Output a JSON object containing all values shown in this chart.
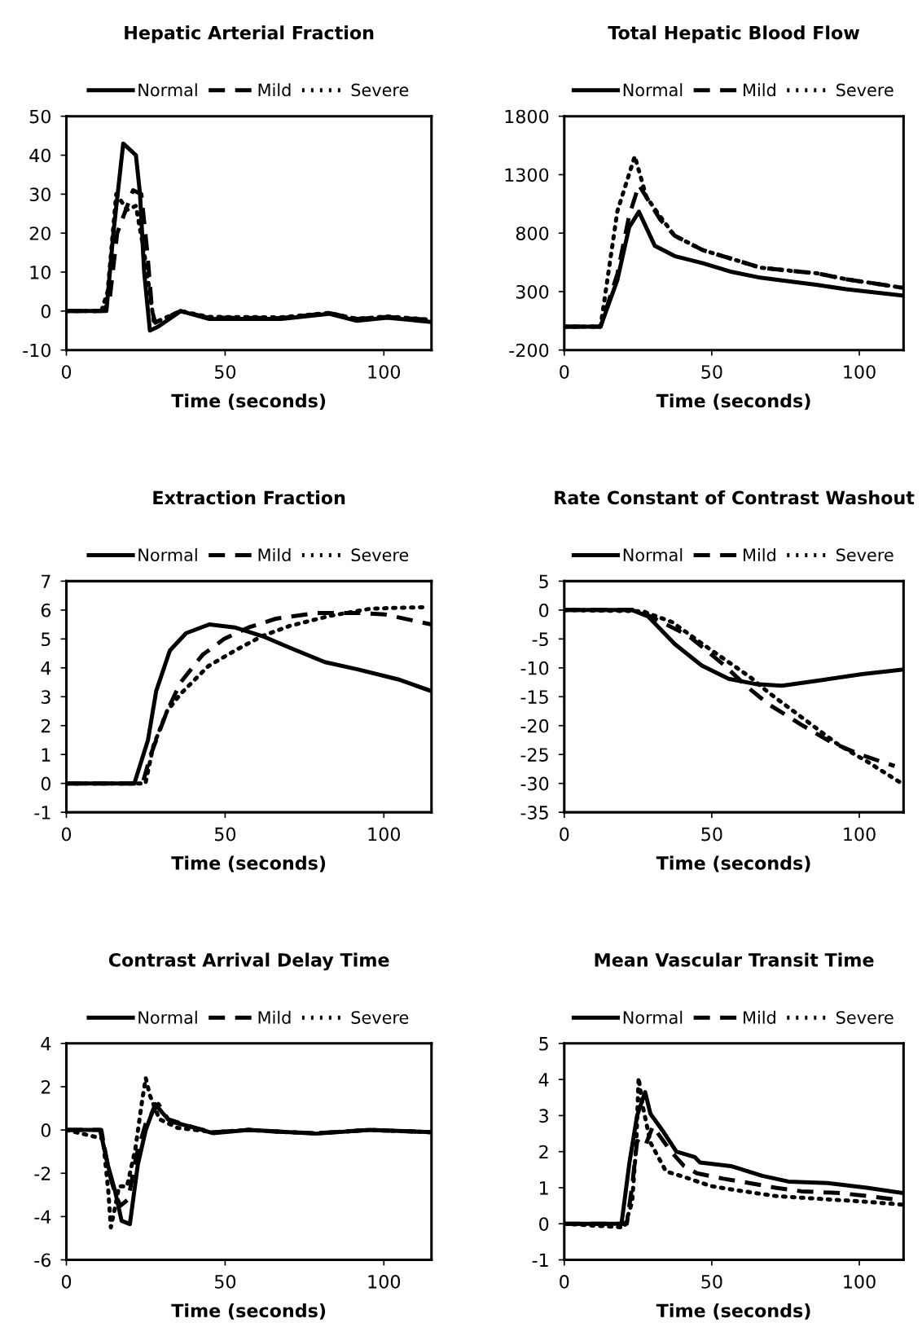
{
  "chart_data": [
    {
      "type": "line",
      "title": "Hepatic Arterial Fraction",
      "xlabel": "Time (seconds)",
      "xlim": [
        0,
        115
      ],
      "xticks": [
        0,
        50,
        100
      ],
      "ylim": [
        -10,
        50
      ],
      "yticks": [
        -10,
        0,
        10,
        20,
        30,
        40,
        50
      ],
      "legend": "top",
      "grid": false,
      "series": [
        {
          "name": "Normal",
          "color": "#000000",
          "line_style": "solid",
          "x": [
            0,
            10,
            12.6,
            14.8,
            17.9,
            21.9,
            23.2,
            24.5,
            26.3,
            28.9,
            36,
            44.8,
            67.7,
            82.7,
            91.5,
            101,
            115
          ],
          "values": [
            0,
            0,
            0,
            20,
            43,
            40,
            30,
            10,
            -5,
            -4,
            0,
            -2,
            -2,
            -0.7,
            -2.5,
            -1.7,
            -2.8
          ]
        },
        {
          "name": "Mild",
          "color": "#000000",
          "line_style": "dashed",
          "x": [
            0,
            11,
            13.5,
            16,
            21,
            23.6,
            25.5,
            27,
            28,
            36,
            44.8,
            67.7,
            82.7,
            91.5,
            101,
            115
          ],
          "values": [
            0,
            0,
            2,
            20,
            31,
            30,
            15,
            0,
            -3,
            0,
            -1.7,
            -1.8,
            -0.5,
            -2,
            -1.5,
            -2.3
          ]
        },
        {
          "name": "Severe",
          "color": "#000000",
          "line_style": "dotted",
          "x": [
            0,
            11,
            13,
            15.7,
            19.2,
            21.9,
            24.5,
            27.6,
            36,
            44.8,
            67.7,
            82.7,
            91.5,
            101,
            115
          ],
          "values": [
            0,
            0,
            5,
            30,
            26,
            27,
            15,
            -3,
            0,
            -1.5,
            -1.6,
            -0.5,
            -2,
            -1.4,
            -2.2
          ]
        }
      ]
    },
    {
      "type": "line",
      "title": "Total Hepatic Blood Flow",
      "xlabel": "Time (seconds)",
      "xlim": [
        0,
        115
      ],
      "xticks": [
        0,
        50,
        100
      ],
      "ylim": [
        -200,
        1800
      ],
      "yticks": [
        -200,
        300,
        800,
        1300,
        1800
      ],
      "legend": "top",
      "grid": false,
      "series": [
        {
          "name": "Normal",
          "color": "#000000",
          "line_style": "solid",
          "x": [
            0,
            12.3,
            18,
            22,
            25.3,
            30.7,
            37.4,
            47,
            56.8,
            66.4,
            76,
            85.8,
            95.5,
            114.8
          ],
          "values": [
            0,
            0,
            400,
            850,
            983,
            691,
            604,
            543,
            468,
            419,
            389,
            357,
            320,
            265
          ]
        },
        {
          "name": "Mild",
          "color": "#000000",
          "line_style": "dashed",
          "x": [
            0,
            12.3,
            18,
            22,
            25.3,
            32.6,
            37.4,
            47,
            56.8,
            66.4,
            76,
            85.8,
            95.5,
            114.8
          ],
          "values": [
            0,
            0,
            450,
            950,
            1211,
            914,
            778,
            654,
            580,
            505,
            480,
            456,
            406,
            332
          ]
        },
        {
          "name": "Severe",
          "color": "#000000",
          "line_style": "dotted",
          "x": [
            0,
            12.3,
            18,
            23.9,
            27.8,
            32.6,
            37.4,
            47,
            56.8,
            66.4,
            76,
            85.8,
            95.5,
            114.8
          ],
          "values": [
            0,
            0,
            988,
            1458,
            1112,
            939,
            778,
            654,
            580,
            505,
            480,
            456,
            406,
            332
          ]
        }
      ]
    },
    {
      "type": "line",
      "title": "Extraction Fraction",
      "xlabel": "Time (seconds)",
      "xlim": [
        0,
        115
      ],
      "xticks": [
        0,
        50,
        100
      ],
      "ylim": [
        -1,
        7
      ],
      "yticks": [
        -1,
        0,
        1,
        2,
        3,
        4,
        5,
        6,
        7
      ],
      "legend": "top",
      "grid": false,
      "series": [
        {
          "name": "Normal",
          "color": "#000000",
          "line_style": "solid",
          "x": [
            0,
            21.4,
            25.7,
            28.3,
            32.6,
            37.7,
            45,
            53,
            61.7,
            70.3,
            81.4,
            91.7,
            104.5,
            114.8
          ],
          "values": [
            0,
            0,
            1.5,
            3.2,
            4.6,
            5.2,
            5.5,
            5.4,
            5.1,
            4.7,
            4.2,
            3.95,
            3.6,
            3.2
          ]
        },
        {
          "name": "Mild",
          "color": "#000000",
          "line_style": "dashed",
          "x": [
            0,
            24,
            26.6,
            31.7,
            36,
            42.9,
            49.7,
            57.4,
            66,
            78.9,
            91.7,
            100.3,
            115
          ],
          "values": [
            0,
            0,
            1.0,
            2.5,
            3.5,
            4.45,
            5.0,
            5.4,
            5.7,
            5.9,
            5.9,
            5.85,
            5.5
          ]
        },
        {
          "name": "Severe",
          "color": "#000000",
          "line_style": "dotted",
          "x": [
            0,
            24.9,
            27.4,
            31.7,
            36,
            44.6,
            53.1,
            61.7,
            70.3,
            83.1,
            96,
            113
          ],
          "values": [
            0,
            0,
            1.3,
            2.5,
            3.1,
            4.05,
            4.6,
            5.1,
            5.45,
            5.8,
            6.05,
            6.1
          ]
        }
      ]
    },
    {
      "type": "line",
      "title": "Rate Constant of Contrast Washout",
      "xlabel": "Time (seconds)",
      "xlim": [
        0,
        115
      ],
      "xticks": [
        0,
        50,
        100
      ],
      "ylim": [
        -35,
        5
      ],
      "yticks": [
        -35,
        -30,
        -25,
        -20,
        -15,
        -10,
        -5,
        0,
        5
      ],
      "legend": "top",
      "grid": false,
      "series": [
        {
          "name": "Normal",
          "color": "#000000",
          "line_style": "solid",
          "x": [
            0,
            23,
            28.4,
            37.5,
            46.6,
            55.7,
            64.8,
            73.8,
            87.5,
            101,
            114.7
          ],
          "values": [
            0,
            0,
            -1.1,
            -5.9,
            -9.6,
            -11.9,
            -12.8,
            -13.1,
            -12.1,
            -11.1,
            -10.3
          ]
        },
        {
          "name": "Mild",
          "color": "#000000",
          "line_style": "dashed",
          "x": [
            0,
            24.8,
            33,
            42,
            53.9,
            62,
            69.3,
            80.2,
            90.2,
            100.2,
            112
          ],
          "values": [
            0,
            0,
            -2.1,
            -4.4,
            -9.4,
            -13.3,
            -16.3,
            -19.8,
            -22.8,
            -25,
            -27
          ]
        },
        {
          "name": "Severe",
          "color": "#000000",
          "line_style": "dotted",
          "x": [
            0,
            26.6,
            36.6,
            47.5,
            63,
            69.3,
            81.1,
            92.9,
            102.9,
            113.8
          ],
          "values": [
            0,
            -0.2,
            -2.1,
            -6.1,
            -11.6,
            -14.3,
            -18.8,
            -23.3,
            -26.3,
            -29.8
          ]
        }
      ]
    },
    {
      "type": "line",
      "title": "Contrast Arrival Delay Time",
      "xlabel": "Time (seconds)",
      "xlim": [
        0,
        115
      ],
      "xticks": [
        0,
        50,
        100
      ],
      "ylim": [
        -6,
        4
      ],
      "yticks": [
        -6,
        -4,
        -2,
        0,
        2,
        4
      ],
      "legend": "top",
      "grid": false,
      "series": [
        {
          "name": "Normal",
          "color": "#000000",
          "line_style": "solid",
          "x": [
            0,
            10.6,
            13.2,
            15.3,
            17.4,
            20,
            22.5,
            25,
            28,
            30.2,
            32.7,
            40.4,
            46.3,
            57.3,
            70,
            78.6,
            95.6,
            114.7
          ],
          "values": [
            0,
            0,
            -1.7,
            -2.8,
            -4.2,
            -4.35,
            -1.6,
            0,
            1.2,
            0.8,
            0.4,
            0.1,
            -0.15,
            0,
            -0.1,
            -0.17,
            0,
            -0.1
          ]
        },
        {
          "name": "Mild",
          "color": "#000000",
          "line_style": "dashed",
          "x": [
            0,
            11,
            13.5,
            15.5,
            17,
            19.5,
            22,
            25,
            27,
            29,
            32,
            40.4,
            46.3,
            57.3,
            70,
            78.6,
            95.6,
            114.7
          ],
          "values": [
            0,
            0,
            -2,
            -3,
            -3.5,
            -3.2,
            -1.2,
            0.3,
            0.8,
            1.2,
            0.5,
            0.1,
            -0.1,
            0,
            -0.1,
            -0.15,
            0,
            -0.1
          ]
        },
        {
          "name": "Severe",
          "color": "#000000",
          "line_style": "dotted",
          "x": [
            0,
            11.5,
            13.2,
            14,
            15.3,
            16.6,
            19.1,
            21.7,
            23.8,
            25,
            26.3,
            29.3,
            35,
            46.3,
            57.3,
            70,
            78.6,
            95.6,
            114.7
          ],
          "values": [
            0,
            -0.4,
            -2.8,
            -4.5,
            -3.6,
            -2.6,
            -2.6,
            -0.9,
            1.3,
            2.4,
            1.6,
            0.5,
            0.1,
            -0.1,
            0,
            -0.1,
            -0.15,
            0,
            -0.1
          ]
        }
      ]
    },
    {
      "type": "line",
      "title": "Mean Vascular Transit Time",
      "xlabel": "Time (seconds)",
      "xlim": [
        0,
        115
      ],
      "xticks": [
        0,
        50,
        100
      ],
      "ylim": [
        -1,
        5
      ],
      "yticks": [
        -1,
        0,
        1,
        2,
        3,
        4,
        5
      ],
      "legend": "top",
      "grid": false,
      "series": [
        {
          "name": "Normal",
          "color": "#000000",
          "line_style": "solid",
          "x": [
            0,
            19.4,
            22.1,
            24.7,
            27.4,
            29.2,
            33.6,
            38,
            44.2,
            46,
            56.5,
            67.1,
            76,
            89.2,
            102.5,
            114.8
          ],
          "values": [
            0,
            0,
            1.7,
            3.0,
            3.65,
            3.05,
            2.55,
            2.0,
            1.85,
            1.7,
            1.6,
            1.33,
            1.17,
            1.13,
            1.0,
            0.85
          ]
        },
        {
          "name": "Mild",
          "color": "#000000",
          "line_style": "dashed",
          "x": [
            0,
            21.2,
            23,
            24.7,
            27.4,
            30,
            36.2,
            40.6,
            45,
            53.9,
            62.7,
            71.6,
            80.4,
            93.6,
            102.5,
            114.8
          ],
          "values": [
            0,
            0,
            1.05,
            2.3,
            2.15,
            2.7,
            2.0,
            1.6,
            1.4,
            1.25,
            1.13,
            1.0,
            0.9,
            0.85,
            0.77,
            0.65
          ]
        },
        {
          "name": "Severe",
          "color": "#000000",
          "line_style": "dotted",
          "x": [
            0,
            20.3,
            23,
            24.4,
            25.2,
            26.5,
            29.2,
            34.5,
            40.6,
            49.5,
            58.3,
            71.6,
            84.8,
            102.5,
            114.8
          ],
          "values": [
            0,
            -0.1,
            0.6,
            2.2,
            4.05,
            3.3,
            2.25,
            1.45,
            1.3,
            1.05,
            0.93,
            0.77,
            0.7,
            0.61,
            0.53
          ]
        }
      ]
    }
  ]
}
